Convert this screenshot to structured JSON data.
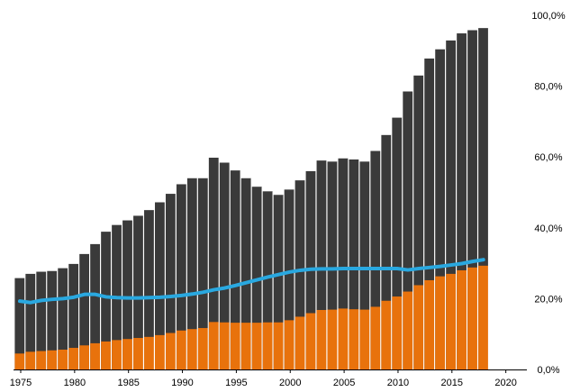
{
  "chart_data": {
    "type": "bar",
    "title": "",
    "xlabel": "",
    "ylabel": "",
    "ylim": [
      0,
      100
    ],
    "grid": false,
    "y_axis_position": "right",
    "y_ticks": [
      0,
      20,
      40,
      60,
      80,
      100
    ],
    "y_tick_labels": [
      "0,0%",
      "20,0%",
      "40,0%",
      "60,0%",
      "80,0%",
      "100,0%"
    ],
    "x_ticks": [
      1975,
      1980,
      1985,
      1990,
      1995,
      2000,
      2005,
      2010,
      2015,
      2020
    ],
    "x_tick_labels": [
      "1975",
      "1980",
      "1985",
      "1990",
      "1995",
      "2000",
      "2005",
      "2010",
      "2015",
      "2020"
    ],
    "colors": {
      "total": "#3a3a3a",
      "part": "#e8720c",
      "line": "#29a8e0",
      "separator": "#ffffff",
      "axis": "#000000"
    },
    "categories": [
      1975,
      1976,
      1977,
      1978,
      1979,
      1980,
      1981,
      1982,
      1983,
      1984,
      1985,
      1986,
      1987,
      1988,
      1989,
      1990,
      1991,
      1992,
      1993,
      1994,
      1995,
      1996,
      1997,
      1998,
      1999,
      2000,
      2001,
      2002,
      2003,
      2004,
      2005,
      2006,
      2007,
      2008,
      2009,
      2010,
      2011,
      2012,
      2013,
      2014,
      2015,
      2016,
      2017,
      2018
    ],
    "series": [
      {
        "kind": "bar",
        "values": [
          25.8,
          27.0,
          27.6,
          27.8,
          28.6,
          29.8,
          32.6,
          35.4,
          38.9,
          40.8,
          42.1,
          43.4,
          45.0,
          47.2,
          49.6,
          52.3,
          54.0,
          54.0,
          59.8,
          58.4,
          56.2,
          54.0,
          51.6,
          50.3,
          49.3,
          50.8,
          53.4,
          56.0,
          59.0,
          58.7,
          59.6,
          59.3,
          58.7,
          61.7,
          66.2,
          71.1,
          78.5,
          83.0,
          87.8,
          90.4,
          92.9,
          94.9,
          95.8,
          96.4
        ]
      },
      {
        "kind": "bar",
        "values": [
          4.5,
          5.0,
          5.2,
          5.4,
          5.6,
          6.1,
          6.8,
          7.4,
          7.9,
          8.3,
          8.6,
          8.9,
          9.2,
          9.7,
          10.3,
          11.0,
          11.4,
          11.7,
          13.4,
          13.3,
          13.2,
          13.2,
          13.2,
          13.3,
          13.3,
          13.9,
          14.9,
          15.9,
          16.8,
          16.9,
          17.2,
          17.0,
          16.9,
          17.7,
          19.4,
          20.6,
          22.0,
          23.8,
          25.2,
          26.3,
          27.0,
          28.0,
          28.8,
          29.3
        ]
      },
      {
        "kind": "line",
        "values": [
          19.3,
          18.9,
          19.5,
          19.8,
          20.0,
          20.4,
          21.2,
          21.2,
          20.5,
          20.3,
          20.2,
          20.2,
          20.3,
          20.4,
          20.6,
          20.9,
          21.3,
          21.8,
          22.5,
          23.0,
          23.7,
          24.5,
          25.3,
          26.1,
          26.8,
          27.5,
          28.0,
          28.3,
          28.4,
          28.4,
          28.5,
          28.5,
          28.5,
          28.5,
          28.5,
          28.5,
          28.1,
          28.5,
          28.8,
          29.1,
          29.5,
          29.9,
          30.5,
          31.0
        ]
      }
    ]
  }
}
